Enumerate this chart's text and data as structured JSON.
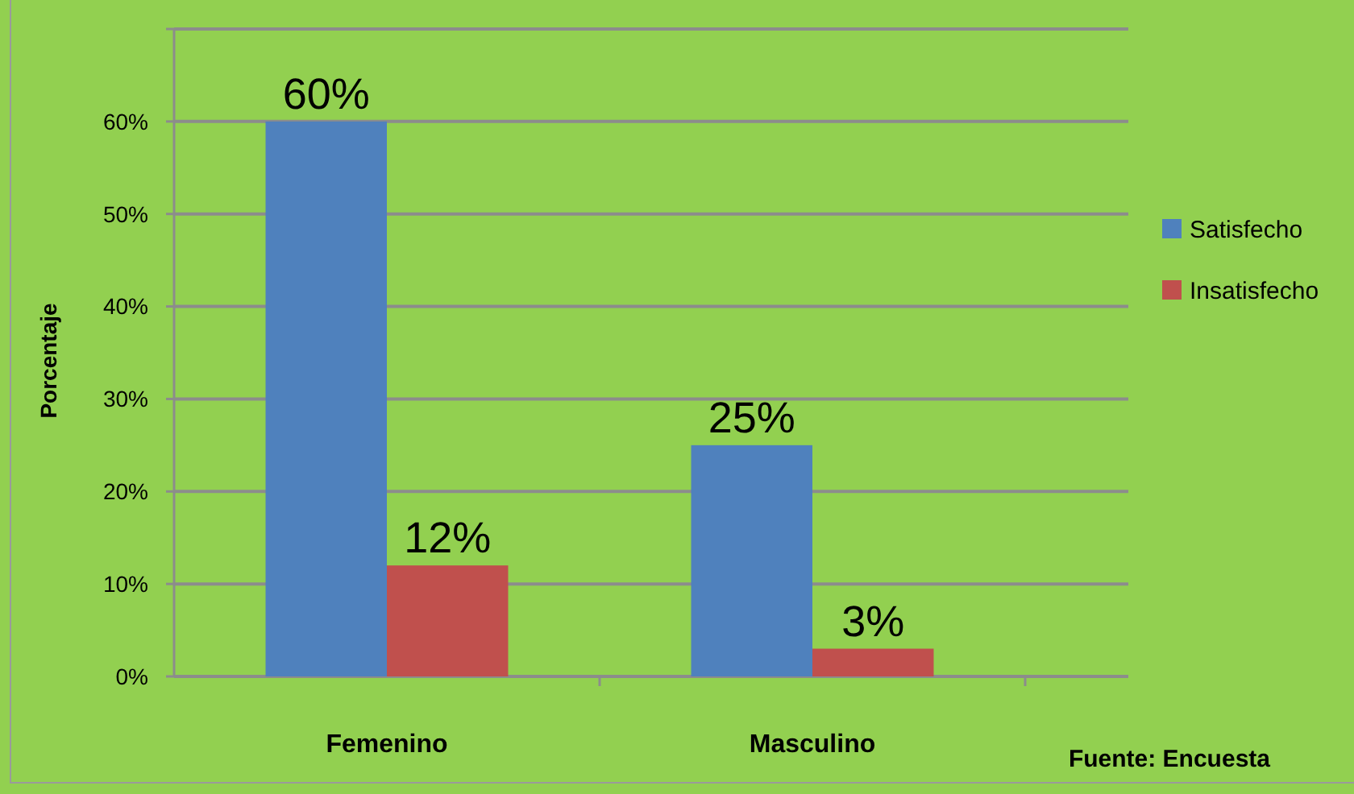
{
  "chart_data": {
    "type": "bar",
    "ylabel": "Porcentaje",
    "categories": [
      "Femenino",
      "Masculino"
    ],
    "series": [
      {
        "name": "Satisfecho",
        "color": "#4f81bd",
        "values": [
          60,
          25
        ],
        "value_labels": [
          "60%",
          "25%"
        ]
      },
      {
        "name": "Insatisfecho",
        "color": "#c0504d",
        "values": [
          12,
          3
        ],
        "value_labels": [
          "12%",
          "3%"
        ]
      }
    ],
    "ylim": [
      0,
      70
    ],
    "yticks": [
      {
        "value": 0,
        "label": "0%"
      },
      {
        "value": 10,
        "label": "10%"
      },
      {
        "value": 20,
        "label": "20%"
      },
      {
        "value": 30,
        "label": "30%"
      },
      {
        "value": 40,
        "label": "40%"
      },
      {
        "value": 50,
        "label": "50%"
      },
      {
        "value": 60,
        "label": "60%"
      },
      {
        "value": 70,
        "label": null
      }
    ],
    "grid": "y",
    "legend": "right",
    "annotations": [
      "Fuente: Encuesta"
    ]
  }
}
